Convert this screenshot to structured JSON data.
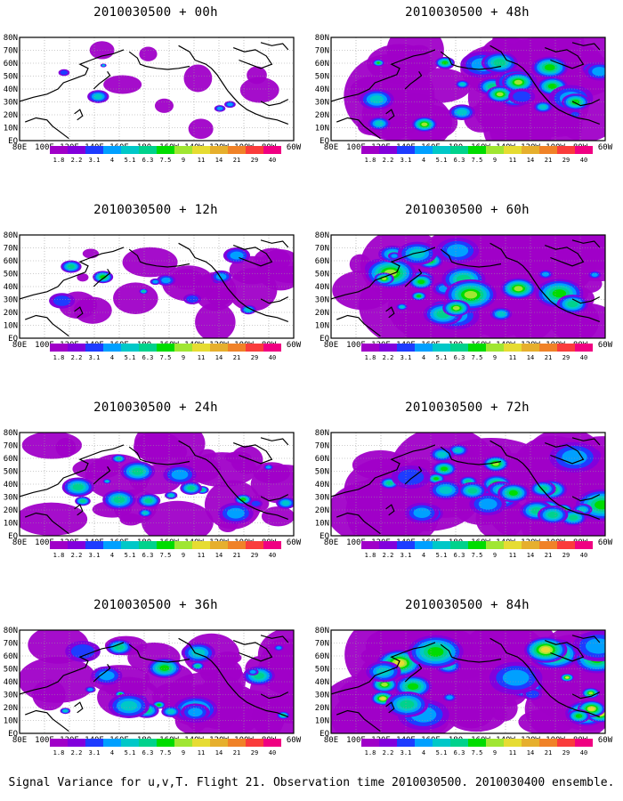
{
  "figure": {
    "caption": "Signal Variance for u,v,T. Flight 21. Observation time 2010030500. 2010030400 ensemble.",
    "colorbar": {
      "labels": [
        "1.8",
        "2.2",
        "3.1",
        "4",
        "5.1",
        "6.3",
        "7.5",
        "9",
        "11",
        "14",
        "21",
        "29",
        "40"
      ],
      "colors": [
        "#a000c8",
        "#8200dc",
        "#1e3cff",
        "#00a0ff",
        "#00c8c8",
        "#00d28c",
        "#00dc00",
        "#a0e632",
        "#e6dc32",
        "#e6af2d",
        "#f08228",
        "#fa3c3c",
        "#f00082"
      ]
    },
    "lon_labels": [
      "80E",
      "100E",
      "120E",
      "140E",
      "160E",
      "180",
      "160W",
      "140W",
      "120W",
      "100W",
      "80W",
      "60W"
    ],
    "lat_labels": [
      "EQ",
      "10N",
      "20N",
      "30N",
      "40N",
      "50N",
      "60N",
      "70N",
      "80N"
    ],
    "panels": [
      {
        "title": "2010030500 + 00h",
        "coverage": 0.05,
        "intensity": 0.45
      },
      {
        "title": "2010030500 + 48h",
        "coverage": 0.7,
        "intensity": 0.6
      },
      {
        "title": "2010030500 + 12h",
        "coverage": 0.25,
        "intensity": 0.45
      },
      {
        "title": "2010030500 + 60h",
        "coverage": 0.8,
        "intensity": 0.65
      },
      {
        "title": "2010030500 + 24h",
        "coverage": 0.45,
        "intensity": 0.5
      },
      {
        "title": "2010030500 + 72h",
        "coverage": 0.85,
        "intensity": 0.7
      },
      {
        "title": "2010030500 + 36h",
        "coverage": 0.6,
        "intensity": 0.55
      },
      {
        "title": "2010030500 + 84h",
        "coverage": 0.9,
        "intensity": 0.8
      }
    ]
  }
}
